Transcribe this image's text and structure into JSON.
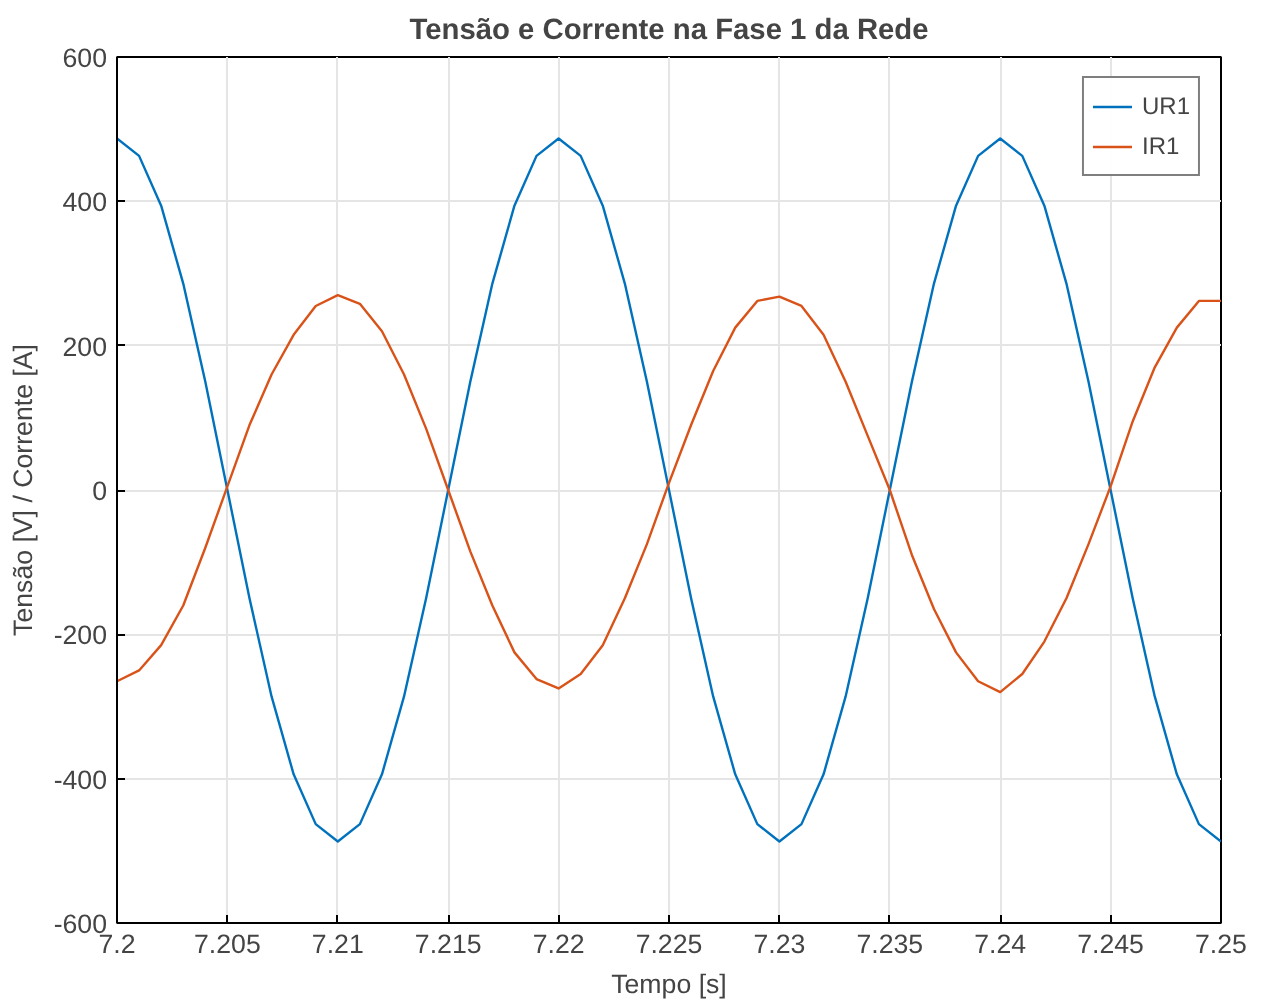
{
  "chart_data": {
    "type": "line",
    "title": "Tensão e Corrente na Fase 1 da Rede",
    "xlabel": "Tempo [s]",
    "ylabel": "Tensão [V] / Corrente [A]",
    "x": [
      7.2,
      7.201,
      7.202,
      7.203,
      7.204,
      7.205,
      7.206,
      7.207,
      7.208,
      7.209,
      7.21,
      7.211,
      7.212,
      7.213,
      7.214,
      7.215,
      7.216,
      7.217,
      7.218,
      7.219,
      7.22,
      7.221,
      7.222,
      7.223,
      7.224,
      7.225,
      7.226,
      7.227,
      7.228,
      7.229,
      7.23,
      7.231,
      7.232,
      7.233,
      7.234,
      7.235,
      7.236,
      7.237,
      7.238,
      7.239,
      7.24,
      7.241,
      7.242,
      7.243,
      7.244,
      7.245,
      7.246,
      7.247,
      7.248,
      7.249,
      7.25
    ],
    "series": [
      {
        "name": "UR1",
        "color": "#0072bd",
        "values": [
          487,
          463,
          394,
          286,
          150,
          0,
          -150,
          -286,
          -394,
          -463,
          -487,
          -463,
          -394,
          -286,
          -150,
          0,
          150,
          286,
          394,
          463,
          487,
          463,
          394,
          286,
          150,
          0,
          -150,
          -286,
          -394,
          -463,
          -487,
          -463,
          -394,
          -286,
          -150,
          0,
          150,
          286,
          394,
          463,
          487,
          463,
          394,
          286,
          150,
          0,
          -150,
          -286,
          -394,
          -463,
          -487
        ]
      },
      {
        "name": "IR1",
        "color": "#d95319",
        "values": [
          -265,
          -250,
          -215,
          -160,
          -80,
          5,
          90,
          160,
          215,
          255,
          270,
          258,
          220,
          160,
          85,
          0,
          -85,
          -160,
          -225,
          -262,
          -275,
          -255,
          -215,
          -150,
          -75,
          10,
          90,
          165,
          225,
          262,
          268,
          255,
          215,
          150,
          75,
          0,
          -90,
          -165,
          -225,
          -265,
          -280,
          -255,
          -210,
          -150,
          -75,
          5,
          95,
          170,
          225,
          262,
          262
        ]
      }
    ],
    "xlim": [
      7.2,
      7.25
    ],
    "ylim": [
      -600,
      600
    ],
    "xticks": [
      7.2,
      7.205,
      7.21,
      7.215,
      7.22,
      7.225,
      7.23,
      7.235,
      7.24,
      7.245,
      7.25
    ],
    "yticks": [
      -600,
      -400,
      -200,
      0,
      200,
      400,
      600
    ],
    "grid": true,
    "legend": "top right",
    "marker": "none",
    "line_style": "solid"
  }
}
